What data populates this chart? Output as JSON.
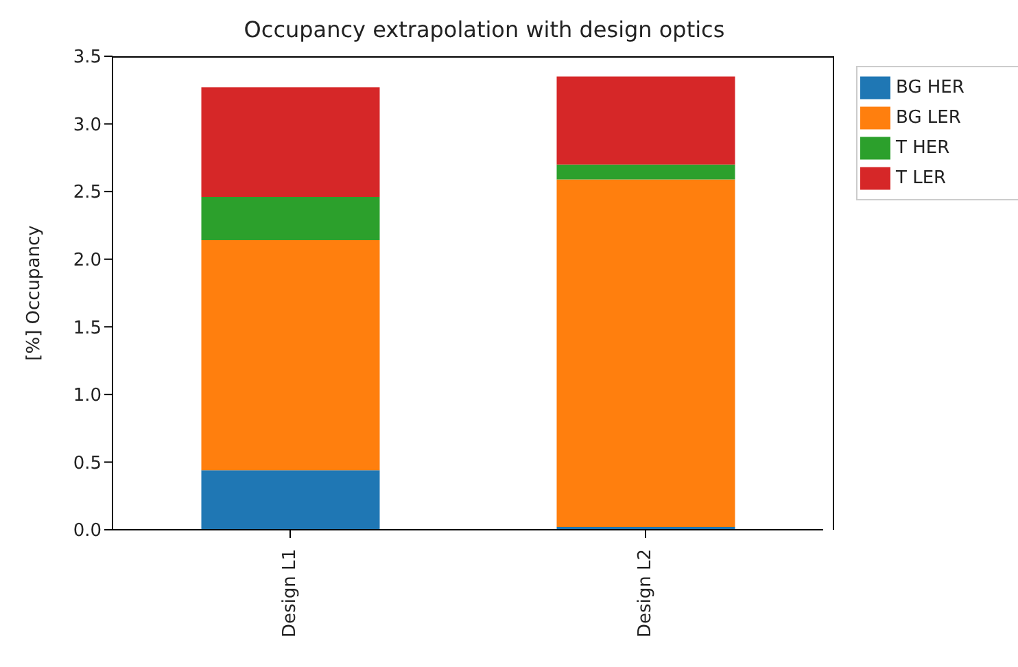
{
  "chart_data": {
    "type": "bar",
    "title": "Occupancy extrapolation with design optics",
    "ylabel": "[%] Occupancy",
    "categories": [
      "Design L1",
      "Design L2"
    ],
    "stacked": true,
    "ylim": [
      0,
      3.5
    ],
    "yticks": [
      {
        "value": 0,
        "label": "0.0"
      },
      0.5,
      {
        "value": 1,
        "label": "1.0"
      },
      1.5,
      {
        "value": 2,
        "label": "2.0"
      },
      2.5,
      {
        "value": 3,
        "label": "3.0"
      },
      3.5
    ],
    "grid": false,
    "legend": "top right",
    "series": [
      {
        "name": "BG HER",
        "color": "#1f77b4",
        "values": [
          0.44,
          0.02
        ]
      },
      {
        "name": "BG LER",
        "color": "#ff7f0e",
        "values": [
          1.7,
          2.57
        ]
      },
      {
        "name": "T HER",
        "color": "#2ca02c",
        "values": [
          0.32,
          0.11
        ]
      },
      {
        "name": "T LER",
        "color": "#d62728",
        "values": [
          0.81,
          0.65
        ]
      }
    ]
  }
}
